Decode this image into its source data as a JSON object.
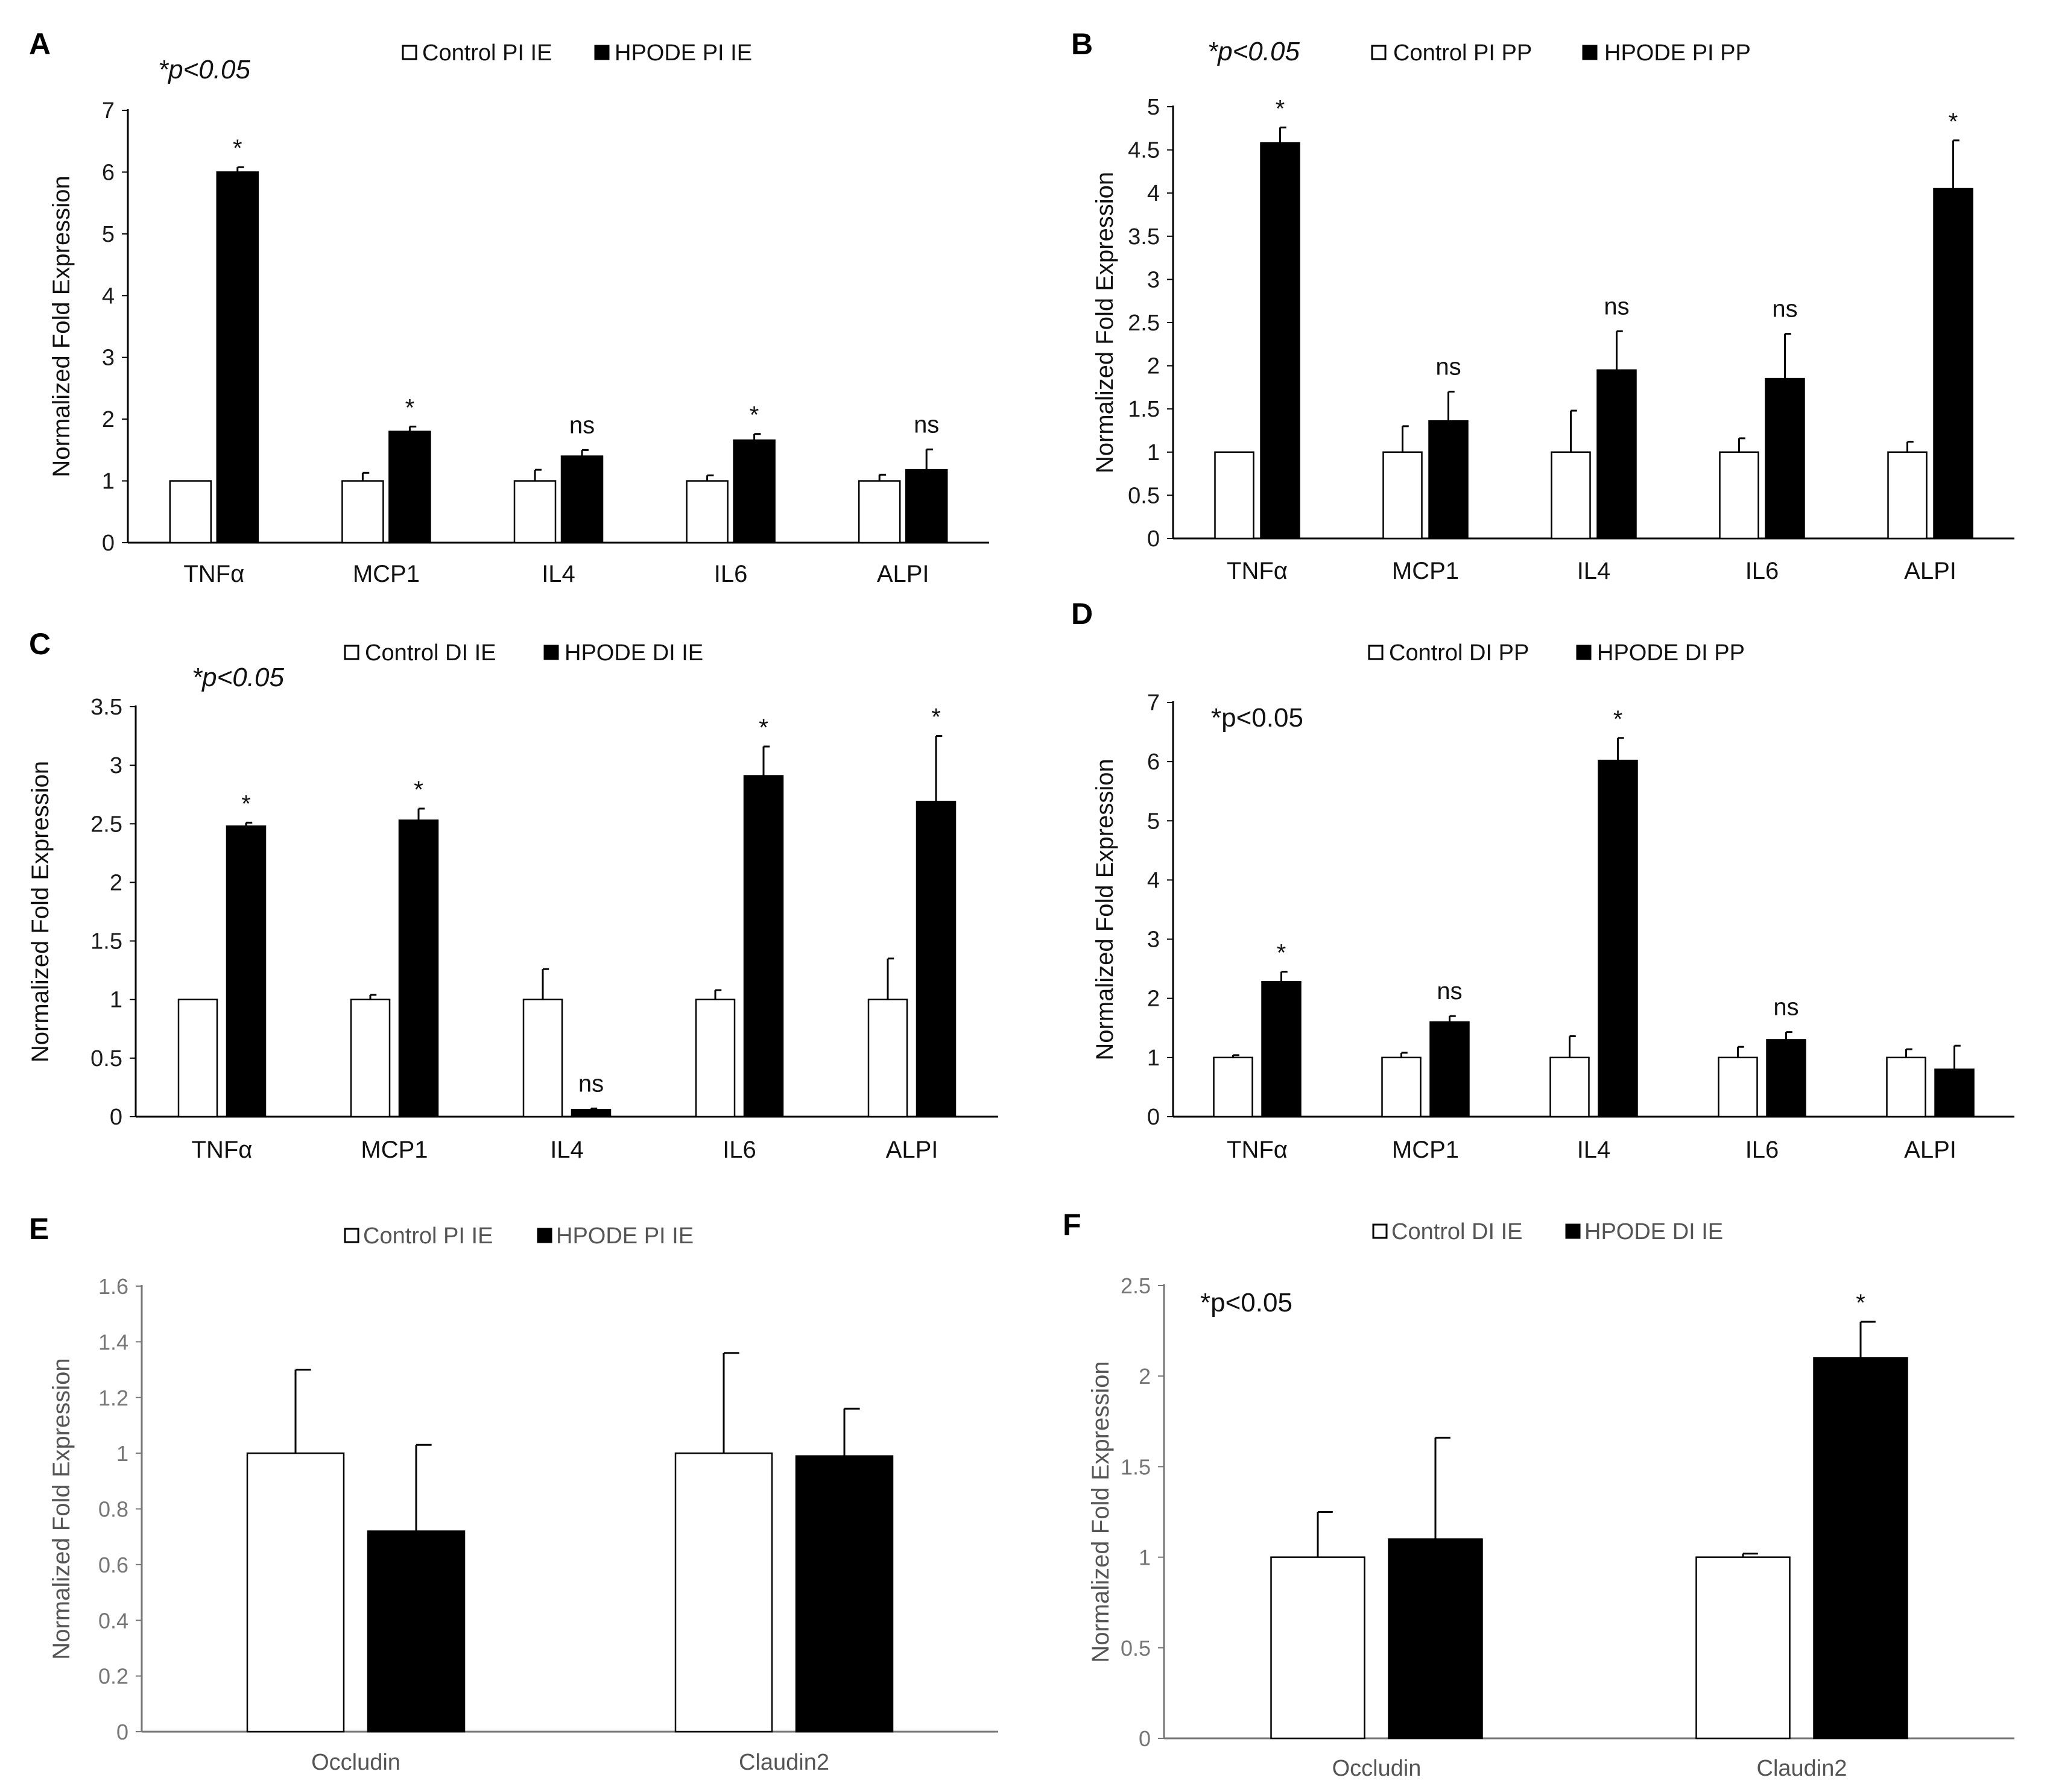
{
  "figure": {
    "colors": {
      "control": "#ffffff",
      "hpode": "#000000",
      "axis": "#000000",
      "gray_axis": "#767676"
    }
  },
  "chart_data": [
    {
      "panel": "A",
      "type": "bar",
      "pvalue_note": "*p<0.05",
      "legend": [
        "Control PI IE",
        "HPODE PI IE"
      ],
      "categories": [
        "TNFα",
        "MCP1",
        "IL4",
        "IL6",
        "ALPI"
      ],
      "series": [
        {
          "name": "Control PI IE",
          "values": [
            1,
            1,
            1,
            1,
            1
          ],
          "errors": [
            0,
            0.13,
            0.18,
            0.09,
            0.1
          ]
        },
        {
          "name": "HPODE PI IE",
          "values": [
            6.0,
            1.8,
            1.4,
            1.66,
            1.18
          ],
          "errors": [
            0.08,
            0.08,
            0.1,
            0.1,
            0.33
          ]
        }
      ],
      "significance": [
        "*",
        "*",
        "ns",
        "*",
        "ns"
      ],
      "ylabel": "Normalized Fold Expression",
      "ylim": [
        0,
        7
      ],
      "yticks": [
        "0",
        "1",
        "2",
        "3",
        "4",
        "5",
        "6",
        "7"
      ],
      "axis_style": "dark"
    },
    {
      "panel": "B",
      "type": "bar",
      "pvalue_note": "*p<0.05",
      "legend": [
        "Control  PI PP",
        "HPODE PI PP"
      ],
      "categories": [
        "TNFα",
        "MCP1",
        "IL4",
        "IL6",
        "ALPI"
      ],
      "series": [
        {
          "name": "Control  PI PP",
          "values": [
            1,
            1,
            1,
            1,
            1
          ],
          "errors": [
            0,
            0.3,
            0.48,
            0.16,
            0.12
          ]
        },
        {
          "name": "HPODE PI PP",
          "values": [
            4.58,
            1.36,
            1.95,
            1.85,
            4.05
          ],
          "errors": [
            0.18,
            0.34,
            0.45,
            0.52,
            0.56
          ]
        }
      ],
      "significance": [
        "*",
        "ns",
        "ns",
        "ns",
        "*"
      ],
      "ylabel": "Normalized Fold Expression",
      "ylim": [
        0,
        5
      ],
      "yticks": [
        "0",
        "0.5",
        "1",
        "1.5",
        "2",
        "2.5",
        "3",
        "3.5",
        "4",
        "4.5",
        "5"
      ],
      "axis_style": "dark"
    },
    {
      "panel": "C",
      "type": "bar",
      "pvalue_note": "*p<0.05",
      "legend": [
        "Control  DI IE",
        "HPODE DI IE"
      ],
      "categories": [
        "TNFα",
        "MCP1",
        "IL4",
        "IL6",
        "ALPI"
      ],
      "series": [
        {
          "name": "Control  DI IE",
          "values": [
            1,
            1,
            1,
            1,
            1
          ],
          "errors": [
            0,
            0.04,
            0.26,
            0.08,
            0.35
          ]
        },
        {
          "name": "HPODE DI IE",
          "values": [
            2.48,
            2.53,
            0.06,
            2.91,
            2.69
          ],
          "errors": [
            0.03,
            0.1,
            0.01,
            0.25,
            0.56
          ]
        }
      ],
      "significance": [
        "*",
        "*",
        "ns",
        "*",
        "*"
      ],
      "ylabel": "Normalized Fold Expression",
      "ylim": [
        0,
        3.5
      ],
      "yticks": [
        "0",
        "0.5",
        "1",
        "1.5",
        "2",
        "2.5",
        "3",
        "3.5"
      ],
      "axis_style": "dark"
    },
    {
      "panel": "D",
      "type": "bar",
      "pvalue_note": "*p<0.05",
      "legend": [
        "Control DI PP",
        "HPODE DI PP"
      ],
      "categories": [
        "TNFα",
        "MCP1",
        "IL4",
        "IL6",
        "ALPI"
      ],
      "series": [
        {
          "name": "Control DI PP",
          "values": [
            1,
            1,
            1,
            1,
            1
          ],
          "errors": [
            0.04,
            0.08,
            0.36,
            0.18,
            0.14
          ]
        },
        {
          "name": "HPODE DI PP",
          "values": [
            2.28,
            1.6,
            6.02,
            1.3,
            0.8
          ],
          "errors": [
            0.17,
            0.1,
            0.38,
            0.13,
            0.4
          ]
        }
      ],
      "significance": [
        "*",
        "ns",
        "*",
        "ns",
        ""
      ],
      "ylabel": "Normalized Fold Expression",
      "ylim": [
        0,
        7
      ],
      "yticks": [
        "0",
        "1",
        "2",
        "3",
        "4",
        "5",
        "6",
        "7"
      ],
      "axis_style": "dark"
    },
    {
      "panel": "E",
      "type": "bar",
      "pvalue_note": "",
      "legend": [
        "Control PI IE",
        "HPODE PI IE"
      ],
      "categories": [
        "Occludin",
        "Claudin2"
      ],
      "series": [
        {
          "name": "Control PI IE",
          "values": [
            1,
            1
          ],
          "errors": [
            0.3,
            0.36
          ]
        },
        {
          "name": "HPODE PI IE",
          "values": [
            0.72,
            0.99
          ],
          "errors": [
            0.31,
            0.17
          ]
        }
      ],
      "significance": [
        "",
        ""
      ],
      "ylabel": "Normalized Fold Expression",
      "ylim": [
        0,
        1.6
      ],
      "yticks": [
        "0",
        "0.2",
        "0.4",
        "0.6",
        "0.8",
        "1",
        "1.2",
        "1.4",
        "1.6"
      ],
      "axis_style": "gray"
    },
    {
      "panel": "F",
      "type": "bar",
      "pvalue_note": "*p<0.05",
      "legend": [
        "Control DI IE",
        "HPODE DI IE"
      ],
      "categories": [
        "Occludin",
        "Claudin2"
      ],
      "series": [
        {
          "name": "Control DI IE",
          "values": [
            1,
            1
          ],
          "errors": [
            0.25,
            0.02
          ]
        },
        {
          "name": "HPODE DI IE",
          "values": [
            1.1,
            2.1
          ],
          "errors": [
            0.56,
            0.2
          ]
        }
      ],
      "significance": [
        "",
        "*"
      ],
      "ylabel": "Normalized Fold Expression",
      "ylim": [
        0,
        2.5
      ],
      "yticks": [
        "0",
        "0.5",
        "1",
        "1.5",
        "2",
        "2.5"
      ],
      "axis_style": "gray"
    }
  ]
}
